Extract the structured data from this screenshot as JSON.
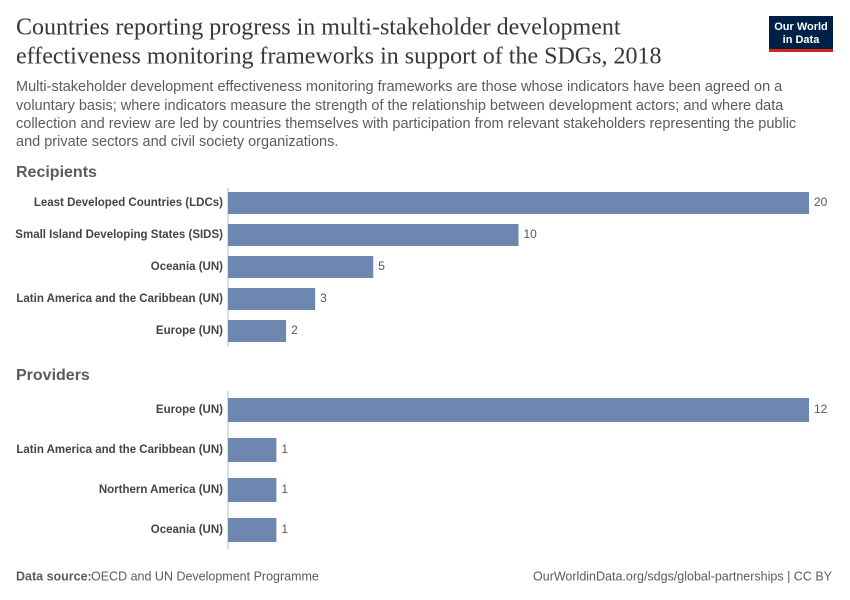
{
  "title": [
    "Countries reporting progress in multi-stakeholder development",
    "effectiveness monitoring frameworks in support of the SDGs, 2018"
  ],
  "subtitle": [
    "Multi-stakeholder development effectiveness monitoring frameworks are those whose indicators have been agreed on a",
    "voluntary basis; where indicators measure the strength of the relationship between development actors; and where data",
    "collection and review are led by countries themselves with participation from relevant stakeholders representing the public",
    "and private sectors and civil society organizations."
  ],
  "logo": [
    "Our World",
    "in Data"
  ],
  "footer": {
    "source_label": "Data source:",
    "source": "OECD and UN Development Programme",
    "url": "OurWorldinData.org/sdgs/global-partnerships | CC BY"
  },
  "chart_data": [
    {
      "type": "bar",
      "orientation": "horizontal",
      "title": "Recipients",
      "color": "#6d87b0",
      "categories": [
        "Least Developed Countries (LDCs)",
        "Small Island Developing States (SIDS)",
        "Oceania (UN)",
        "Latin America and the Caribbean (UN)",
        "Europe (UN)"
      ],
      "values": [
        20,
        10,
        5,
        3,
        2
      ]
    },
    {
      "type": "bar",
      "orientation": "horizontal",
      "title": "Providers",
      "color": "#6d87b0",
      "categories": [
        "Europe (UN)",
        "Latin America and the Caribbean (UN)",
        "Northern America (UN)",
        "Oceania (UN)"
      ],
      "values": [
        12,
        1,
        1,
        1
      ]
    }
  ]
}
